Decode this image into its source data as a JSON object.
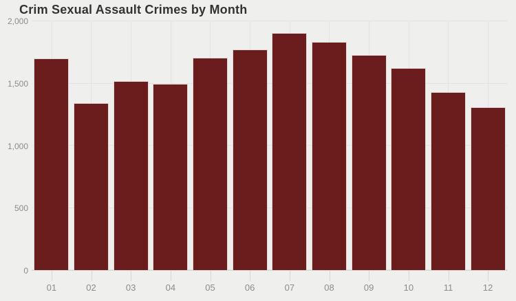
{
  "chart_data": {
    "type": "bar",
    "title": "Crim Sexual Assault Crimes by Month",
    "categories": [
      "01",
      "02",
      "03",
      "04",
      "05",
      "06",
      "07",
      "08",
      "09",
      "10",
      "11",
      "12"
    ],
    "values": [
      1700,
      1340,
      1520,
      1500,
      1710,
      1775,
      1905,
      1835,
      1730,
      1625,
      1430,
      1310
    ],
    "xlabel": "",
    "ylabel": "",
    "ylim": [
      0,
      2000
    ],
    "ytick_step": 500,
    "ytick_labels": [
      "0",
      "500",
      "1,000",
      "1,500",
      "2,000"
    ],
    "grid": true,
    "vertical_grid_at_category_centers": true,
    "legend": "none",
    "colors": {
      "background": "#EFEFED",
      "bar": "#6B1C1C",
      "bar_border": "#DED6D2",
      "gridline": "#E3E2E0",
      "axis_line": "#D8D7D5",
      "axis_labels": "#8B8B8B",
      "title": "#333333"
    }
  }
}
